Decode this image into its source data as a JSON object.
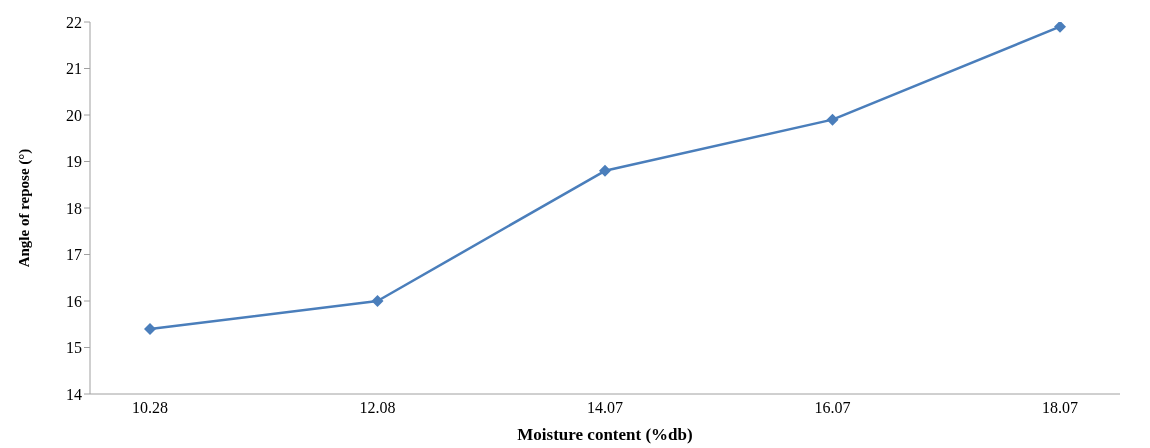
{
  "chart_data": {
    "type": "line",
    "xlabel": "Moisture content (%db)",
    "ylabel": "Angle of repose (°)",
    "categories": [
      "10.28",
      "12.08",
      "14.07",
      "16.07",
      "18.07"
    ],
    "series": [
      {
        "color": "#4a7ebb",
        "values": [
          15.4,
          16.0,
          18.8,
          19.9,
          21.9
        ]
      }
    ],
    "ylim": [
      14,
      22
    ],
    "yticks": [
      14,
      15,
      16,
      17,
      18,
      19,
      20,
      21,
      22
    ],
    "grid": false,
    "legend": false,
    "marker": "diamond",
    "line_style": "solid"
  }
}
